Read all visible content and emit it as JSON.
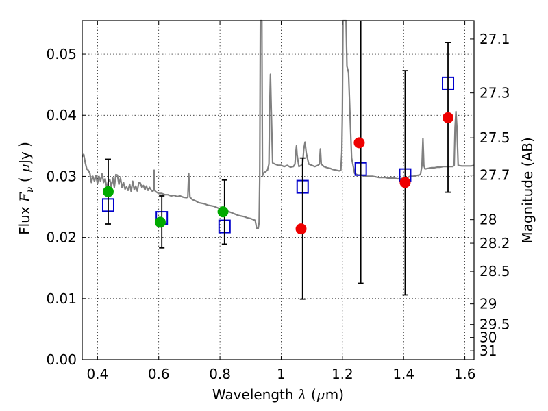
{
  "chart_data": {
    "type": "scatter",
    "xlabel": {
      "prefix": "Wavelength  ",
      "symbol": "λ",
      "suffix": " (",
      "unit_mu": "μ",
      "unit_rest": "m)"
    },
    "ylabel": {
      "prefix": "Flux  ",
      "symbol": "F",
      "sub": "ν",
      "suffix": "  ( ",
      "unit_mu": "μ",
      "unit_rest": "Jy )"
    },
    "y2label": "Magnitude (AB)",
    "xlim": [
      0.35,
      1.63
    ],
    "ylim": [
      0.0,
      0.0555
    ],
    "grid": true,
    "x_ticks": [
      {
        "value": 0.4,
        "label": "0.4"
      },
      {
        "value": 0.6,
        "label": "0.6"
      },
      {
        "value": 0.8,
        "label": "0.8"
      },
      {
        "value": 1.0,
        "label": "1"
      },
      {
        "value": 1.2,
        "label": "1.2"
      },
      {
        "value": 1.4,
        "label": "1.4"
      },
      {
        "value": 1.6,
        "label": "1.6"
      }
    ],
    "y_ticks": [
      {
        "value": 0.0,
        "label": "0.00"
      },
      {
        "value": 0.01,
        "label": "0.01"
      },
      {
        "value": 0.02,
        "label": "0.02"
      },
      {
        "value": 0.03,
        "label": "0.03"
      },
      {
        "value": 0.04,
        "label": "0.04"
      },
      {
        "value": 0.05,
        "label": "0.05"
      }
    ],
    "mag_ticks": [
      {
        "mag": 27.1,
        "label": "27.1"
      },
      {
        "mag": 27.3,
        "label": "27.3"
      },
      {
        "mag": 27.5,
        "label": "27.5"
      },
      {
        "mag": 27.7,
        "label": "27.7"
      },
      {
        "mag": 28.0,
        "label": "28"
      },
      {
        "mag": 28.2,
        "label": "28.2"
      },
      {
        "mag": 28.5,
        "label": "28.5"
      },
      {
        "mag": 29.0,
        "label": "29"
      },
      {
        "mag": 29.5,
        "label": "29.5"
      },
      {
        "mag": 30.0,
        "label": "30"
      },
      {
        "mag": 31.0,
        "label": "31"
      }
    ],
    "series": [
      {
        "kind": "line",
        "color": "#808080",
        "points": [
          [
            0.35,
            0.0332
          ],
          [
            0.355,
            0.0336
          ],
          [
            0.36,
            0.0322
          ],
          [
            0.365,
            0.0312
          ],
          [
            0.37,
            0.031
          ],
          [
            0.375,
            0.0305
          ],
          [
            0.38,
            0.029
          ],
          [
            0.385,
            0.03
          ],
          [
            0.39,
            0.0292
          ],
          [
            0.395,
            0.0301
          ],
          [
            0.4,
            0.0288
          ],
          [
            0.405,
            0.03
          ],
          [
            0.41,
            0.0292
          ],
          [
            0.415,
            0.0304
          ],
          [
            0.42,
            0.029
          ],
          [
            0.425,
            0.0296
          ],
          [
            0.43,
            0.0282
          ],
          [
            0.435,
            0.0291
          ],
          [
            0.44,
            0.0295
          ],
          [
            0.445,
            0.0283
          ],
          [
            0.45,
            0.0297
          ],
          [
            0.455,
            0.0282
          ],
          [
            0.46,
            0.0303
          ],
          [
            0.465,
            0.0302
          ],
          [
            0.47,
            0.0287
          ],
          [
            0.475,
            0.0297
          ],
          [
            0.48,
            0.0282
          ],
          [
            0.485,
            0.029
          ],
          [
            0.49,
            0.0279
          ],
          [
            0.495,
            0.0283
          ],
          [
            0.5,
            0.0277
          ],
          [
            0.505,
            0.0287
          ],
          [
            0.51,
            0.0275
          ],
          [
            0.515,
            0.0292
          ],
          [
            0.52,
            0.0278
          ],
          [
            0.525,
            0.0284
          ],
          [
            0.53,
            0.0276
          ],
          [
            0.535,
            0.029
          ],
          [
            0.54,
            0.0289
          ],
          [
            0.545,
            0.0282
          ],
          [
            0.55,
            0.0285
          ],
          [
            0.555,
            0.0278
          ],
          [
            0.56,
            0.0284
          ],
          [
            0.565,
            0.0277
          ],
          [
            0.57,
            0.0282
          ],
          [
            0.575,
            0.0278
          ],
          [
            0.58,
            0.0275
          ],
          [
            0.583,
            0.0277
          ],
          [
            0.585,
            0.031
          ],
          [
            0.587,
            0.0277
          ],
          [
            0.59,
            0.0275
          ],
          [
            0.6,
            0.0272
          ],
          [
            0.61,
            0.0272
          ],
          [
            0.62,
            0.027
          ],
          [
            0.63,
            0.027
          ],
          [
            0.64,
            0.0268
          ],
          [
            0.65,
            0.0269
          ],
          [
            0.66,
            0.0267
          ],
          [
            0.67,
            0.0268
          ],
          [
            0.68,
            0.0266
          ],
          [
            0.69,
            0.0265
          ],
          [
            0.695,
            0.0266
          ],
          [
            0.698,
            0.0305
          ],
          [
            0.702,
            0.0266
          ],
          [
            0.71,
            0.0262
          ],
          [
            0.72,
            0.026
          ],
          [
            0.73,
            0.0257
          ],
          [
            0.74,
            0.0256
          ],
          [
            0.75,
            0.0255
          ],
          [
            0.76,
            0.0253
          ],
          [
            0.77,
            0.0252
          ],
          [
            0.78,
            0.0251
          ],
          [
            0.79,
            0.0249
          ],
          [
            0.8,
            0.0247
          ],
          [
            0.81,
            0.0246
          ],
          [
            0.82,
            0.0244
          ],
          [
            0.83,
            0.0242
          ],
          [
            0.84,
            0.024
          ],
          [
            0.85,
            0.0238
          ],
          [
            0.86,
            0.0236
          ],
          [
            0.87,
            0.0235
          ],
          [
            0.88,
            0.0234
          ],
          [
            0.89,
            0.0232
          ],
          [
            0.9,
            0.0231
          ],
          [
            0.91,
            0.0229
          ],
          [
            0.915,
            0.0228
          ],
          [
            0.92,
            0.0215
          ],
          [
            0.925,
            0.0215
          ],
          [
            0.928,
            0.0225
          ],
          [
            0.93,
            0.03
          ],
          [
            0.932,
            0.0555
          ],
          [
            0.937,
            0.0555
          ],
          [
            0.939,
            0.03
          ],
          [
            0.941,
            0.0305
          ],
          [
            0.95,
            0.0308
          ],
          [
            0.955,
            0.031
          ],
          [
            0.96,
            0.032
          ],
          [
            0.962,
            0.04
          ],
          [
            0.965,
            0.0467
          ],
          [
            0.968,
            0.04
          ],
          [
            0.972,
            0.0322
          ],
          [
            0.98,
            0.032
          ],
          [
            0.99,
            0.0318
          ],
          [
            1.0,
            0.0318
          ],
          [
            1.01,
            0.0316
          ],
          [
            1.02,
            0.0318
          ],
          [
            1.03,
            0.0315
          ],
          [
            1.04,
            0.0316
          ],
          [
            1.045,
            0.032
          ],
          [
            1.048,
            0.034
          ],
          [
            1.05,
            0.035
          ],
          [
            1.052,
            0.0335
          ],
          [
            1.058,
            0.0316
          ],
          [
            1.065,
            0.0318
          ],
          [
            1.07,
            0.032
          ],
          [
            1.074,
            0.0345
          ],
          [
            1.078,
            0.0356
          ],
          [
            1.082,
            0.0338
          ],
          [
            1.09,
            0.032
          ],
          [
            1.1,
            0.0318
          ],
          [
            1.11,
            0.0316
          ],
          [
            1.12,
            0.0318
          ],
          [
            1.125,
            0.032
          ],
          [
            1.128,
            0.0345
          ],
          [
            1.131,
            0.032
          ],
          [
            1.14,
            0.0316
          ],
          [
            1.15,
            0.0314
          ],
          [
            1.16,
            0.0313
          ],
          [
            1.17,
            0.0311
          ],
          [
            1.18,
            0.031
          ],
          [
            1.19,
            0.0309
          ],
          [
            1.195,
            0.031
          ],
          [
            1.198,
            0.034
          ],
          [
            1.2,
            0.04
          ],
          [
            1.202,
            0.0555
          ],
          [
            1.212,
            0.0555
          ],
          [
            1.215,
            0.048
          ],
          [
            1.22,
            0.047
          ],
          [
            1.225,
            0.04
          ],
          [
            1.23,
            0.033
          ],
          [
            1.24,
            0.0305
          ],
          [
            1.25,
            0.0302
          ],
          [
            1.26,
            0.0302
          ],
          [
            1.27,
            0.0301
          ],
          [
            1.28,
            0.03
          ],
          [
            1.29,
            0.03
          ],
          [
            1.3,
            0.03
          ],
          [
            1.31,
            0.0299
          ],
          [
            1.32,
            0.0298
          ],
          [
            1.33,
            0.0298
          ],
          [
            1.34,
            0.0298
          ],
          [
            1.35,
            0.0297
          ],
          [
            1.36,
            0.0297
          ],
          [
            1.37,
            0.0297
          ],
          [
            1.38,
            0.0296
          ],
          [
            1.39,
            0.0296
          ],
          [
            1.4,
            0.0297
          ],
          [
            1.41,
            0.0297
          ],
          [
            1.42,
            0.03
          ],
          [
            1.43,
            0.03
          ],
          [
            1.44,
            0.0301
          ],
          [
            1.45,
            0.0302
          ],
          [
            1.455,
            0.0303
          ],
          [
            1.46,
            0.0318
          ],
          [
            1.463,
            0.0362
          ],
          [
            1.466,
            0.0318
          ],
          [
            1.47,
            0.0312
          ],
          [
            1.48,
            0.0313
          ],
          [
            1.49,
            0.0314
          ],
          [
            1.5,
            0.0314
          ],
          [
            1.51,
            0.0315
          ],
          [
            1.52,
            0.0315
          ],
          [
            1.53,
            0.0316
          ],
          [
            1.54,
            0.0316
          ],
          [
            1.55,
            0.0316
          ],
          [
            1.56,
            0.0316
          ],
          [
            1.565,
            0.0318
          ],
          [
            1.568,
            0.038
          ],
          [
            1.571,
            0.0406
          ],
          [
            1.574,
            0.038
          ],
          [
            1.578,
            0.0318
          ],
          [
            1.59,
            0.0317
          ],
          [
            1.6,
            0.0317
          ],
          [
            1.61,
            0.0317
          ],
          [
            1.62,
            0.0317
          ],
          [
            1.63,
            0.0318
          ]
        ]
      },
      {
        "kind": "squares",
        "color": "#0000cc",
        "points": [
          [
            0.435,
            0.0253
          ],
          [
            0.61,
            0.0232
          ],
          [
            0.815,
            0.0218
          ],
          [
            1.07,
            0.0283
          ],
          [
            1.26,
            0.0312
          ],
          [
            1.405,
            0.0302
          ],
          [
            1.545,
            0.0452
          ]
        ]
      },
      {
        "kind": "errorbars",
        "color": "#000000",
        "points": [
          {
            "x": 0.435,
            "lo": 0.0222,
            "hi": 0.0328
          },
          {
            "x": 0.61,
            "lo": 0.0183,
            "hi": 0.0268
          },
          {
            "x": 0.815,
            "lo": 0.0189,
            "hi": 0.0294
          },
          {
            "x": 1.07,
            "lo": 0.0099,
            "hi": 0.033
          },
          {
            "x": 1.26,
            "lo": 0.0125,
            "hi": 0.0555
          },
          {
            "x": 1.405,
            "lo": 0.0106,
            "hi": 0.0473
          },
          {
            "x": 1.545,
            "lo": 0.0274,
            "hi": 0.0519
          }
        ]
      },
      {
        "kind": "circles",
        "color": "#00aa00",
        "points": [
          [
            0.435,
            0.0275
          ],
          [
            0.605,
            0.0225
          ],
          [
            0.81,
            0.0242
          ]
        ]
      },
      {
        "kind": "circles",
        "color": "#ee0000",
        "points": [
          [
            1.065,
            0.0214
          ],
          [
            1.255,
            0.0355
          ],
          [
            1.405,
            0.029
          ],
          [
            1.545,
            0.0396
          ]
        ]
      }
    ]
  }
}
